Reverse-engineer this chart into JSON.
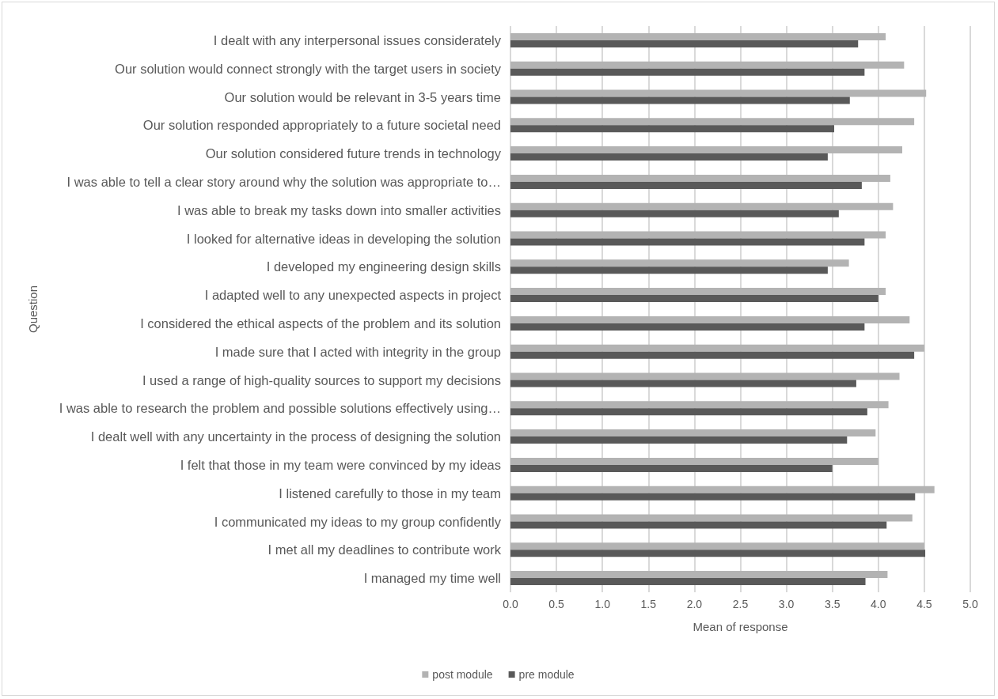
{
  "chart_data": {
    "type": "bar",
    "orientation": "horizontal",
    "xlabel": "Mean of response",
    "ylabel": "Question",
    "categories": [
      "I dealt with any interpersonal issues considerately",
      "Our solution would connect strongly with the target users in society",
      "Our solution would be relevant in 3-5 years time",
      "Our solution responded appropriately to a future societal need",
      "Our solution considered future trends in technology",
      "I was able to tell a clear story around why the solution was appropriate to…",
      "I was able to break my tasks down into smaller activities",
      "I looked for alternative ideas in developing the solution",
      "I developed my engineering design skills",
      "I adapted well to any unexpected aspects in project",
      "I considered the ethical aspects of the problem and its solution",
      "I made sure that I acted with integrity in the group",
      "I used a range of high-quality sources to support my decisions",
      "I was able to research the problem and possible solutions effectively using…",
      "I dealt well with any uncertainty in the process of designing the solution",
      "I felt that those in my team were convinced by my ideas",
      "I listened carefully to those in my team",
      "I communicated my ideas to my group confidently",
      "I met all my deadlines to contribute work",
      "I managed my time well"
    ],
    "series": [
      {
        "name": "post module",
        "color": "#b3b3b3",
        "values": [
          4.08,
          4.28,
          4.52,
          4.39,
          4.26,
          4.13,
          4.16,
          4.08,
          3.68,
          4.08,
          4.34,
          4.5,
          4.23,
          4.11,
          3.97,
          4.0,
          4.61,
          4.37,
          4.5,
          4.1
        ]
      },
      {
        "name": "pre module",
        "color": "#595959",
        "values": [
          3.78,
          3.85,
          3.69,
          3.52,
          3.45,
          3.82,
          3.57,
          3.85,
          3.45,
          4.0,
          3.85,
          4.39,
          3.76,
          3.88,
          3.66,
          3.5,
          4.4,
          4.09,
          4.51,
          3.86
        ]
      }
    ],
    "xlim": [
      0,
      5
    ],
    "xticks": [
      {
        "value": 0,
        "label": "0.0"
      },
      0.5,
      {
        "value": 1,
        "label": "1.0"
      },
      1.5,
      {
        "value": 2,
        "label": "2.0"
      },
      2.5,
      {
        "value": 3,
        "label": "3.0"
      },
      3.5,
      {
        "value": 4,
        "label": "4.0"
      },
      4.5,
      {
        "value": 5,
        "label": "5.0"
      }
    ],
    "grid": "x",
    "legend": "bottom"
  }
}
